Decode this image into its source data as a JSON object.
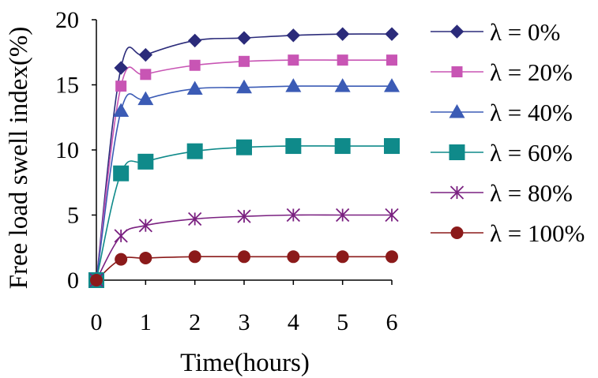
{
  "chart_data": {
    "type": "line",
    "title": "",
    "xlabel": "Time(hours)",
    "ylabel": "Free load swell index(%)",
    "xlim": [
      0,
      6
    ],
    "ylim": [
      0,
      20
    ],
    "xticks": [
      "0",
      "1",
      "2",
      "3",
      "4",
      "5",
      "6"
    ],
    "yticks": [
      "0",
      "5",
      "10",
      "15",
      "20"
    ],
    "grid": false,
    "legend_position": "right",
    "x": [
      0,
      0.5,
      1,
      2,
      3,
      4,
      5,
      6
    ],
    "series": [
      {
        "name": "λ = 0%",
        "marker": "diamond",
        "color": "#2b2b7a",
        "values": [
          0,
          16.3,
          17.3,
          18.4,
          18.6,
          18.8,
          18.9,
          18.9
        ]
      },
      {
        "name": "λ = 20%",
        "marker": "square",
        "color": "#c855b4",
        "values": [
          0,
          14.9,
          15.8,
          16.5,
          16.8,
          16.9,
          16.9,
          16.9
        ]
      },
      {
        "name": "λ = 40%",
        "marker": "triangle",
        "color": "#3b5bb5",
        "values": [
          0,
          13.0,
          13.9,
          14.7,
          14.8,
          14.9,
          14.9,
          14.9
        ]
      },
      {
        "name": "λ = 60%",
        "marker": "square-large",
        "color": "#0f8a8a",
        "values": [
          0,
          8.2,
          9.1,
          9.9,
          10.2,
          10.3,
          10.3,
          10.3
        ]
      },
      {
        "name": "λ = 80%",
        "marker": "asterisk",
        "color": "#7a2080",
        "values": [
          0,
          3.4,
          4.2,
          4.7,
          4.9,
          5.0,
          5.0,
          5.0
        ]
      },
      {
        "name": "λ = 100%",
        "marker": "circle",
        "color": "#8b1a1a",
        "values": [
          0,
          1.6,
          1.7,
          1.8,
          1.8,
          1.8,
          1.8,
          1.8
        ]
      }
    ]
  }
}
